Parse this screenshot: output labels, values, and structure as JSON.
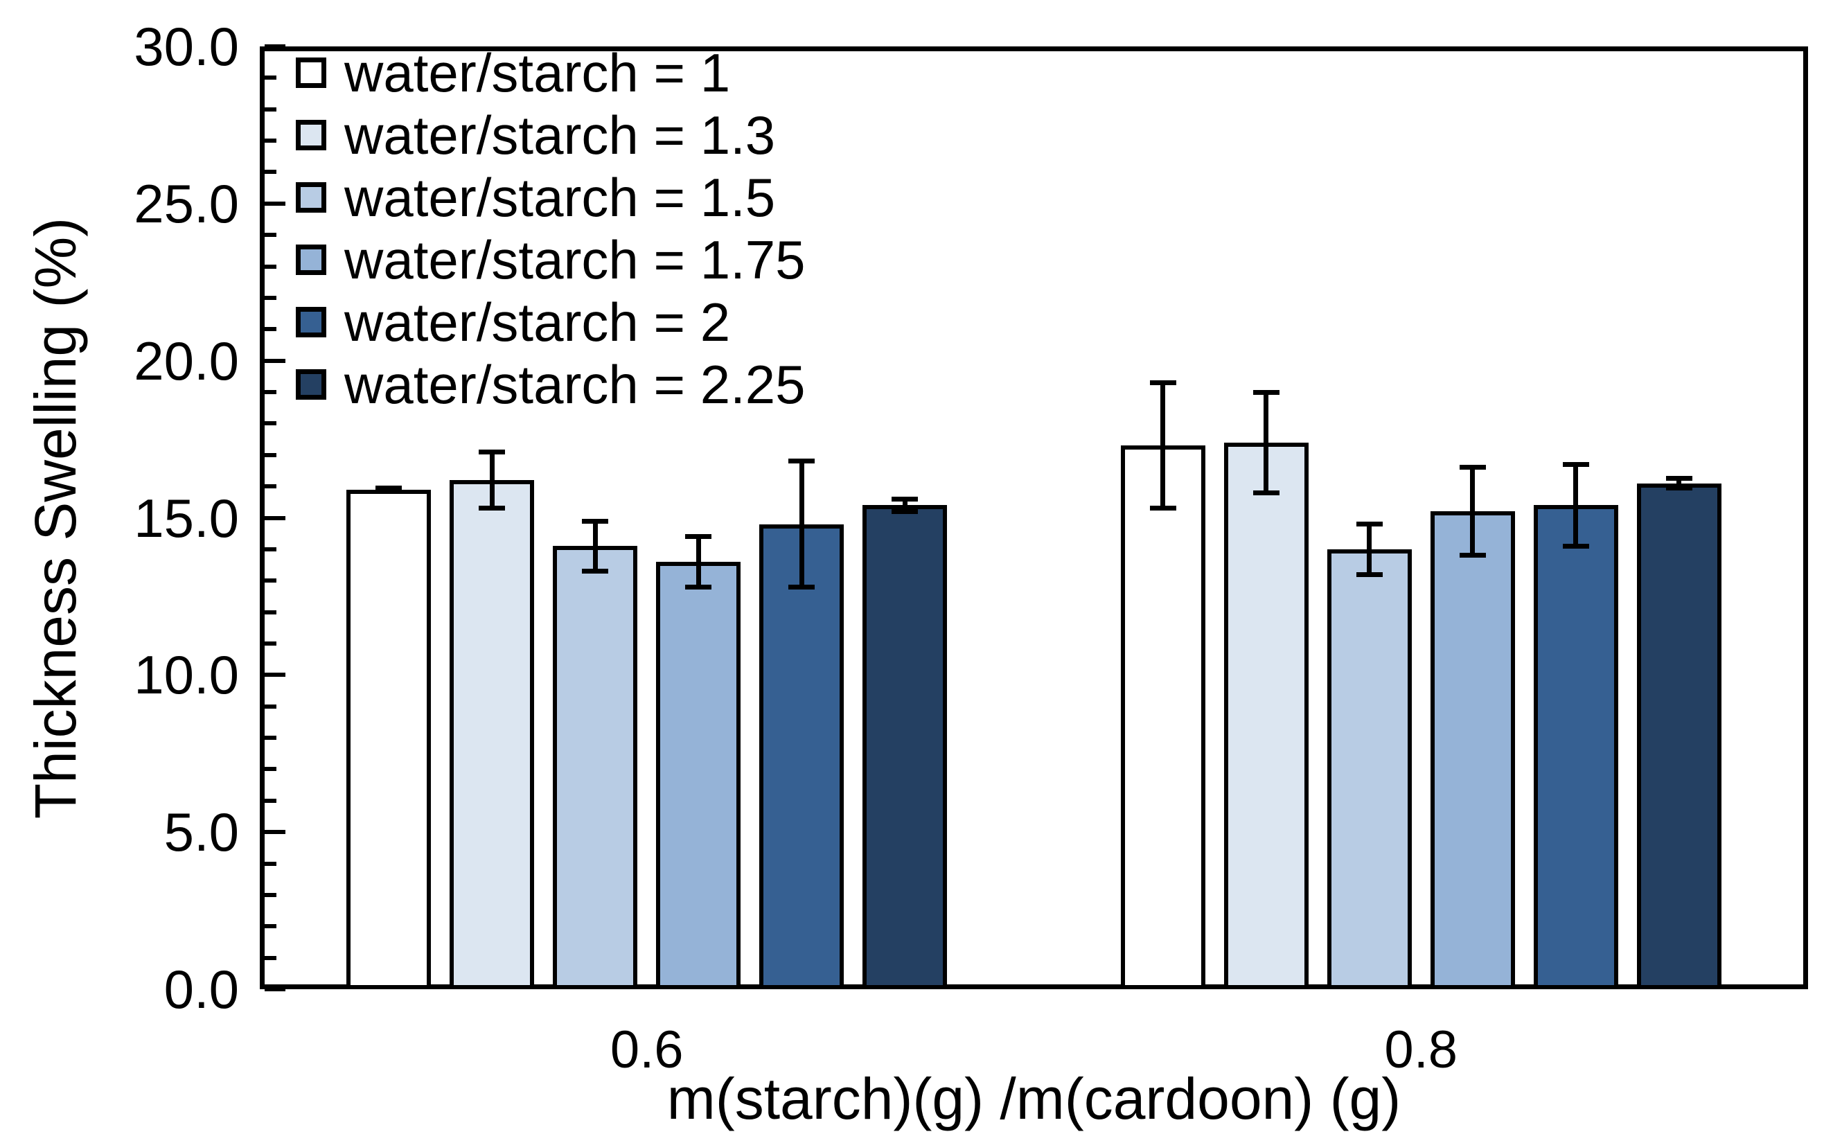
{
  "chart_data": {
    "type": "bar",
    "title": "",
    "xlabel": "m(starch)(g) /m(cardoon) (g)",
    "ylabel": "Thickness Swelling (%)",
    "ylim": [
      0,
      30
    ],
    "ytick_step": 5,
    "yminor_step": 1,
    "y_tick_labels": [
      "0.0",
      "5.0",
      "10.0",
      "15.0",
      "20.0",
      "25.0",
      "30.0"
    ],
    "categories": [
      "0.6",
      "0.8"
    ],
    "series": [
      {
        "name": "water/starch = 1",
        "color": "#FFFFFF",
        "values": [
          15.9,
          17.3
        ],
        "errors": [
          0.05,
          2.0
        ]
      },
      {
        "name": "water/starch = 1.3",
        "color": "#DCE6F1",
        "values": [
          16.2,
          17.4
        ],
        "errors": [
          0.9,
          1.6
        ]
      },
      {
        "name": "water/starch = 1.5",
        "color": "#B8CCE4",
        "values": [
          14.1,
          14.0
        ],
        "errors": [
          0.8,
          0.8
        ]
      },
      {
        "name": "water/starch = 1.75",
        "color": "#95B3D7",
        "values": [
          13.6,
          15.2
        ],
        "errors": [
          0.8,
          1.4
        ]
      },
      {
        "name": "water/starch = 2",
        "color": "#366092",
        "values": [
          14.8,
          15.4
        ],
        "errors": [
          2.0,
          1.3
        ]
      },
      {
        "name": "water/starch = 2.25",
        "color": "#244062",
        "values": [
          15.4,
          16.1
        ],
        "errors": [
          0.2,
          0.15
        ]
      }
    ],
    "legend_position": "top-left",
    "grid": "off",
    "bar_edge_color": "#000000",
    "error_bar_color": "#000000",
    "axis_color": "#000000",
    "background_color": "#FFFFFF"
  }
}
